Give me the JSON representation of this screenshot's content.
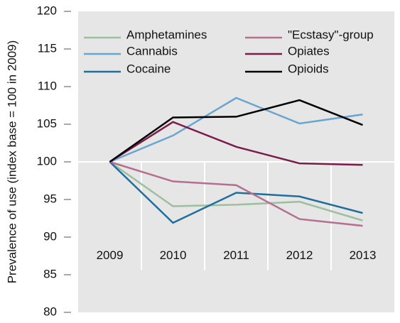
{
  "chart_data": {
    "type": "line",
    "y_label": "Prevalence of use (index base = 100 in 2009)",
    "categories": [
      "2009",
      "2010",
      "2011",
      "2012",
      "2013"
    ],
    "series": [
      {
        "name": "Amphetamines",
        "color": "#9dbf9e",
        "values": [
          100,
          94.1,
          94.3,
          94.7,
          92.2
        ]
      },
      {
        "name": "Cannabis",
        "color": "#6aa5cf",
        "values": [
          100,
          103.5,
          108.5,
          105.1,
          106.3
        ]
      },
      {
        "name": "Cocaine",
        "color": "#1f6e9c",
        "values": [
          100,
          91.9,
          95.9,
          95.4,
          93.2
        ]
      },
      {
        "name": "\"Ecstasy\"-group",
        "color": "#b5708f",
        "values": [
          100,
          97.4,
          96.9,
          92.4,
          91.5
        ]
      },
      {
        "name": "Opiates",
        "color": "#7b1c4b",
        "values": [
          100,
          105.3,
          102.0,
          99.8,
          99.6
        ]
      },
      {
        "name": "Opioids",
        "color": "#000000",
        "values": [
          100,
          105.9,
          106.0,
          108.2,
          104.9
        ]
      }
    ],
    "ylim": [
      80,
      120
    ],
    "yticks": [
      80,
      85,
      90,
      95,
      100,
      105,
      110,
      115,
      120
    ]
  }
}
